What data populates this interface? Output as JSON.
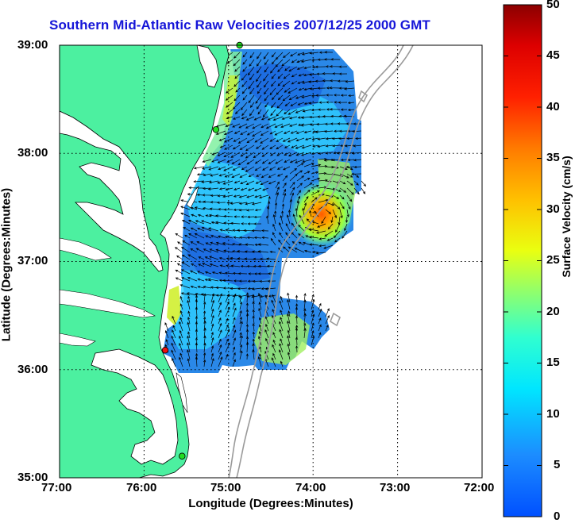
{
  "title": "Southern Mid-Atlantic Raw Velocities 2007/12/25 2000 GMT",
  "xlabel": "Longitude (Degrees:Minutes)",
  "ylabel": "Latitude (Degrees:Minutes)",
  "colorbar_label": "Surface Velocity (cm/s)",
  "x_ticks": [
    "77:00",
    "76:00",
    "75:00",
    "74:00",
    "73:00",
    "72:00"
  ],
  "y_ticks": [
    "39:00",
    "38:00",
    "37:00",
    "36:00",
    "35:00"
  ],
  "colorbar_ticks": [
    "50",
    "45",
    "40",
    "35",
    "30",
    "25",
    "20",
    "15",
    "10",
    "5",
    "0"
  ],
  "colors": {
    "land": "#4cf0a0",
    "coast_line": "#000000",
    "bathymetry": "#9a9a9a",
    "grid": "#000000",
    "title": "#1515d8",
    "station_green": "#22dd22",
    "station_red": "#ee1111",
    "arrow": "#000000"
  },
  "stations": [
    {
      "color": "green",
      "lon": -74.87,
      "lat": 39.0
    },
    {
      "color": "green",
      "lon": -75.15,
      "lat": 38.22
    },
    {
      "color": "red",
      "lon": -75.75,
      "lat": 36.18
    },
    {
      "color": "green",
      "lon": -75.55,
      "lat": 35.2
    }
  ],
  "map_extent": {
    "lon": [
      -77.0,
      -72.0
    ],
    "lat": [
      35.0,
      39.0
    ]
  },
  "colorbar_range": [
    0,
    50
  ]
}
